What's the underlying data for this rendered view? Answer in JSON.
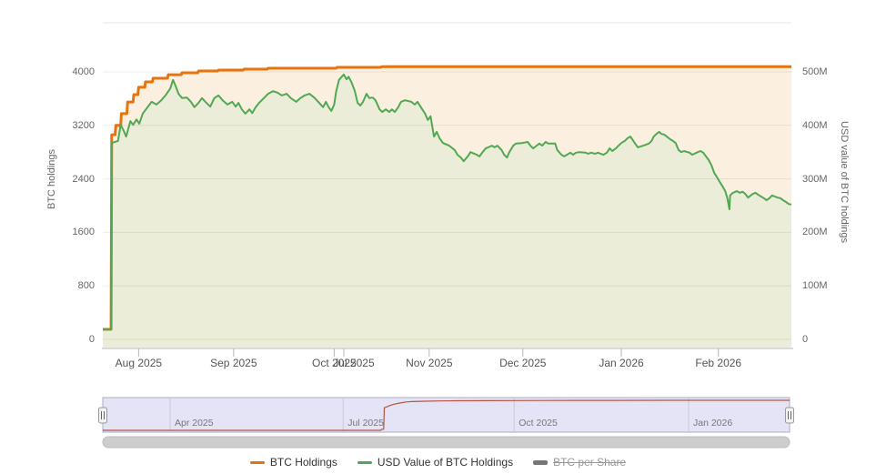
{
  "chart_data": {
    "type": "area",
    "title": "",
    "x_axis": {
      "ticks": [
        {
          "label": "Aug 2025",
          "f": 0.052
        },
        {
          "label": "Sep 2025",
          "f": 0.19
        },
        {
          "label": "Oct 2025",
          "f": 0.336
        },
        {
          "label": "Nov 2025",
          "f": 0.474
        },
        {
          "label": "Dec 2025",
          "f": 0.61
        },
        {
          "label": "Jan 2026",
          "f": 0.753
        },
        {
          "label": "Feb 2026",
          "f": 0.894
        }
      ],
      "ghost_tick": {
        "label": "Jul 2025",
        "f": 0.35
      }
    },
    "y_axis_left": {
      "title": "BTC holdings",
      "range": [
        0,
        4000
      ],
      "ticks": [
        {
          "label": "0",
          "value": 0
        },
        {
          "label": "800",
          "value": 800
        },
        {
          "label": "1600",
          "value": 1600
        },
        {
          "label": "2400",
          "value": 2400
        },
        {
          "label": "3200",
          "value": 3200
        },
        {
          "label": "4000",
          "value": 4000
        }
      ]
    },
    "y_axis_right": {
      "title": "USD value of BTC holdings",
      "range": [
        0,
        500
      ],
      "ticks": [
        {
          "label": "0",
          "value": 0
        },
        {
          "label": "100M",
          "value": 100
        },
        {
          "label": "200M",
          "value": 200
        },
        {
          "label": "300M",
          "value": 300
        },
        {
          "label": "400M",
          "value": 400
        },
        {
          "label": "500M",
          "value": 500
        }
      ]
    },
    "series": [
      {
        "name": "BTC Holdings",
        "axis": "left",
        "color": "#e6730c",
        "fill": "#fbf0e0",
        "width": 3,
        "points": [
          [
            0,
            150
          ],
          [
            0.012,
            150
          ],
          [
            0.013,
            3060
          ],
          [
            0.018,
            3060
          ],
          [
            0.019,
            3200
          ],
          [
            0.026,
            3200
          ],
          [
            0.027,
            3375
          ],
          [
            0.035,
            3375
          ],
          [
            0.036,
            3550
          ],
          [
            0.044,
            3550
          ],
          [
            0.045,
            3660
          ],
          [
            0.051,
            3660
          ],
          [
            0.052,
            3770
          ],
          [
            0.061,
            3770
          ],
          [
            0.062,
            3850
          ],
          [
            0.072,
            3850
          ],
          [
            0.073,
            3905
          ],
          [
            0.094,
            3905
          ],
          [
            0.095,
            3958
          ],
          [
            0.114,
            3958
          ],
          [
            0.115,
            3986
          ],
          [
            0.138,
            3986
          ],
          [
            0.139,
            4013
          ],
          [
            0.167,
            4013
          ],
          [
            0.168,
            4027
          ],
          [
            0.204,
            4027
          ],
          [
            0.205,
            4041
          ],
          [
            0.239,
            4041
          ],
          [
            0.24,
            4054
          ],
          [
            0.339,
            4054
          ],
          [
            0.34,
            4068
          ],
          [
            0.404,
            4068
          ],
          [
            0.405,
            4078
          ],
          [
            1,
            4078
          ]
        ]
      },
      {
        "name": "USD Value of BTC Holdings",
        "axis": "right",
        "color": "#52a852",
        "fill": "#ecedd9",
        "width": 2,
        "points": [
          [
            0,
            19
          ],
          [
            0.012,
            19
          ],
          [
            0.013,
            367
          ],
          [
            0.022,
            371
          ],
          [
            0.026,
            401
          ],
          [
            0.03,
            391
          ],
          [
            0.034,
            379
          ],
          [
            0.04,
            408
          ],
          [
            0.044,
            401
          ],
          [
            0.049,
            411
          ],
          [
            0.053,
            403
          ],
          [
            0.058,
            422
          ],
          [
            0.065,
            434
          ],
          [
            0.071,
            444
          ],
          [
            0.078,
            439
          ],
          [
            0.085,
            447
          ],
          [
            0.091,
            456
          ],
          [
            0.098,
            469
          ],
          [
            0.102,
            485
          ],
          [
            0.106,
            473
          ],
          [
            0.11,
            459
          ],
          [
            0.115,
            451
          ],
          [
            0.122,
            452
          ],
          [
            0.128,
            444
          ],
          [
            0.133,
            434
          ],
          [
            0.139,
            442
          ],
          [
            0.144,
            451
          ],
          [
            0.149,
            444
          ],
          [
            0.156,
            435
          ],
          [
            0.162,
            451
          ],
          [
            0.168,
            456
          ],
          [
            0.174,
            447
          ],
          [
            0.181,
            439
          ],
          [
            0.188,
            444
          ],
          [
            0.193,
            435
          ],
          [
            0.197,
            442
          ],
          [
            0.202,
            430
          ],
          [
            0.207,
            422
          ],
          [
            0.213,
            430
          ],
          [
            0.217,
            423
          ],
          [
            0.222,
            434
          ],
          [
            0.227,
            442
          ],
          [
            0.234,
            451
          ],
          [
            0.24,
            459
          ],
          [
            0.247,
            464
          ],
          [
            0.254,
            461
          ],
          [
            0.26,
            456
          ],
          [
            0.267,
            459
          ],
          [
            0.273,
            451
          ],
          [
            0.281,
            444
          ],
          [
            0.287,
            451
          ],
          [
            0.293,
            456
          ],
          [
            0.3,
            459
          ],
          [
            0.307,
            452
          ],
          [
            0.313,
            444
          ],
          [
            0.32,
            434
          ],
          [
            0.324,
            444
          ],
          [
            0.328,
            434
          ],
          [
            0.332,
            427
          ],
          [
            0.336,
            439
          ],
          [
            0.339,
            464
          ],
          [
            0.343,
            485
          ],
          [
            0.347,
            491
          ],
          [
            0.35,
            495
          ],
          [
            0.354,
            486
          ],
          [
            0.357,
            491
          ],
          [
            0.361,
            481
          ],
          [
            0.366,
            464
          ],
          [
            0.37,
            442
          ],
          [
            0.374,
            437
          ],
          [
            0.378,
            444
          ],
          [
            0.383,
            459
          ],
          [
            0.387,
            451
          ],
          [
            0.392,
            452
          ],
          [
            0.396,
            447
          ],
          [
            0.402,
            430
          ],
          [
            0.406,
            425
          ],
          [
            0.411,
            430
          ],
          [
            0.416,
            425
          ],
          [
            0.42,
            430
          ],
          [
            0.424,
            425
          ],
          [
            0.429,
            434
          ],
          [
            0.433,
            444
          ],
          [
            0.439,
            447
          ],
          [
            0.448,
            444
          ],
          [
            0.453,
            439
          ],
          [
            0.457,
            444
          ],
          [
            0.462,
            434
          ],
          [
            0.468,
            422
          ],
          [
            0.472,
            410
          ],
          [
            0.476,
            417
          ],
          [
            0.481,
            379
          ],
          [
            0.485,
            388
          ],
          [
            0.489,
            376
          ],
          [
            0.494,
            367
          ],
          [
            0.503,
            362
          ],
          [
            0.511,
            354
          ],
          [
            0.515,
            345
          ],
          [
            0.52,
            340
          ],
          [
            0.524,
            333
          ],
          [
            0.53,
            342
          ],
          [
            0.534,
            350
          ],
          [
            0.543,
            345
          ],
          [
            0.547,
            342
          ],
          [
            0.551,
            349
          ],
          [
            0.556,
            357
          ],
          [
            0.56,
            359
          ],
          [
            0.565,
            362
          ],
          [
            0.569,
            359
          ],
          [
            0.573,
            362
          ],
          [
            0.579,
            354
          ],
          [
            0.583,
            345
          ],
          [
            0.587,
            340
          ],
          [
            0.59,
            349
          ],
          [
            0.596,
            362
          ],
          [
            0.6,
            366
          ],
          [
            0.609,
            367
          ],
          [
            0.617,
            369
          ],
          [
            0.621,
            362
          ],
          [
            0.625,
            357
          ],
          [
            0.63,
            362
          ],
          [
            0.634,
            366
          ],
          [
            0.638,
            362
          ],
          [
            0.643,
            369
          ],
          [
            0.647,
            366
          ],
          [
            0.657,
            366
          ],
          [
            0.66,
            354
          ],
          [
            0.666,
            345
          ],
          [
            0.67,
            342
          ],
          [
            0.674,
            345
          ],
          [
            0.679,
            349
          ],
          [
            0.683,
            345
          ],
          [
            0.687,
            349
          ],
          [
            0.692,
            350
          ],
          [
            0.701,
            349
          ],
          [
            0.705,
            347
          ],
          [
            0.709,
            349
          ],
          [
            0.715,
            347
          ],
          [
            0.719,
            349
          ],
          [
            0.723,
            347
          ],
          [
            0.727,
            345
          ],
          [
            0.732,
            349
          ],
          [
            0.736,
            357
          ],
          [
            0.74,
            352
          ],
          [
            0.745,
            357
          ],
          [
            0.749,
            362
          ],
          [
            0.753,
            367
          ],
          [
            0.758,
            371
          ],
          [
            0.762,
            376
          ],
          [
            0.766,
            379
          ],
          [
            0.769,
            374
          ],
          [
            0.773,
            366
          ],
          [
            0.777,
            359
          ],
          [
            0.785,
            362
          ],
          [
            0.793,
            366
          ],
          [
            0.797,
            371
          ],
          [
            0.8,
            379
          ],
          [
            0.804,
            384
          ],
          [
            0.808,
            388
          ],
          [
            0.811,
            384
          ],
          [
            0.815,
            383
          ],
          [
            0.819,
            379
          ],
          [
            0.824,
            374
          ],
          [
            0.828,
            371
          ],
          [
            0.832,
            367
          ],
          [
            0.836,
            354
          ],
          [
            0.84,
            350
          ],
          [
            0.844,
            352
          ],
          [
            0.852,
            349
          ],
          [
            0.856,
            345
          ],
          [
            0.864,
            350
          ],
          [
            0.868,
            352
          ],
          [
            0.872,
            349
          ],
          [
            0.876,
            342
          ],
          [
            0.88,
            335
          ],
          [
            0.884,
            325
          ],
          [
            0.888,
            311
          ],
          [
            0.892,
            303
          ],
          [
            0.896,
            294
          ],
          [
            0.9,
            286
          ],
          [
            0.904,
            277
          ],
          [
            0.907,
            264
          ],
          [
            0.91,
            243
          ],
          [
            0.911,
            269
          ],
          [
            0.915,
            274
          ],
          [
            0.921,
            277
          ],
          [
            0.925,
            274
          ],
          [
            0.929,
            276
          ],
          [
            0.933,
            272
          ],
          [
            0.937,
            265
          ],
          [
            0.941,
            269
          ],
          [
            0.944,
            272
          ],
          [
            0.948,
            274
          ],
          [
            0.952,
            270
          ],
          [
            0.956,
            267
          ],
          [
            0.96,
            264
          ],
          [
            0.964,
            260
          ],
          [
            0.968,
            264
          ],
          [
            0.972,
            269
          ],
          [
            0.976,
            267
          ],
          [
            0.98,
            265
          ],
          [
            0.984,
            264
          ],
          [
            0.988,
            260
          ],
          [
            0.992,
            257
          ],
          [
            0.996,
            253
          ],
          [
            1,
            252
          ]
        ]
      },
      {
        "name": "BTC per Share",
        "visible": false,
        "color": "#757575"
      }
    ],
    "navigator": {
      "labels": [
        {
          "label": "Apr 2025",
          "f": 0.098
        },
        {
          "label": "Jul 2025",
          "f": 0.35
        },
        {
          "label": "Oct 2025",
          "f": 0.599
        },
        {
          "label": "Jan 2026",
          "f": 0.853
        }
      ],
      "series": {
        "color": "#b85442",
        "range": [
          0,
          4078
        ],
        "points": [
          [
            0,
            0
          ],
          [
            0.405,
            0
          ],
          [
            0.406,
            150
          ],
          [
            0.409,
            150
          ],
          [
            0.41,
            3060
          ],
          [
            0.414,
            3200
          ],
          [
            0.418,
            3375
          ],
          [
            0.424,
            3550
          ],
          [
            0.43,
            3660
          ],
          [
            0.436,
            3770
          ],
          [
            0.442,
            3850
          ],
          [
            0.45,
            3905
          ],
          [
            0.47,
            3958
          ],
          [
            0.49,
            3986
          ],
          [
            0.52,
            4013
          ],
          [
            0.56,
            4027
          ],
          [
            0.6,
            4041
          ],
          [
            0.65,
            4054
          ],
          [
            0.75,
            4068
          ],
          [
            0.82,
            4078
          ],
          [
            1,
            4078
          ]
        ]
      }
    }
  },
  "legend": {
    "items": [
      {
        "label": "BTC Holdings",
        "color": "#e6730c",
        "disabled": false
      },
      {
        "label": "USD Value of BTC Holdings",
        "color": "#52a852",
        "disabled": false
      },
      {
        "label": "BTC per Share",
        "color": "#757575",
        "disabled": true
      }
    ]
  },
  "colors": {
    "gridline": "#e6e6e6",
    "axis_line": "#b6b6b6",
    "navigator_fill": "#e4e4f6",
    "navigator_grid": "#c8c8de",
    "navigator_border": "#adadc6",
    "scrollbar": "#cdcdcd"
  }
}
